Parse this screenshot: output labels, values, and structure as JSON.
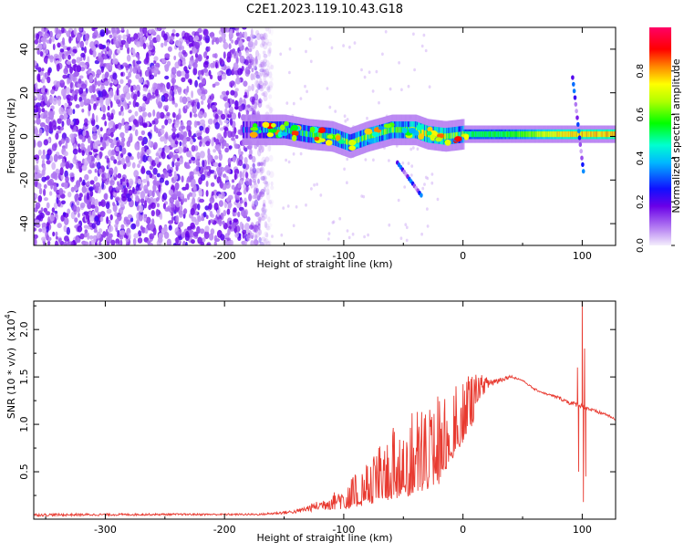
{
  "title": "C2E1.2023.119.10.43.G18",
  "chart_data": [
    {
      "type": "heatmap",
      "xlabel": "Height of straight line (km)",
      "ylabel": "Frequency (Hz)",
      "xlim": [
        -360,
        128
      ],
      "ylim": [
        -50,
        50
      ],
      "x_ticks": [
        -300,
        -200,
        -100,
        0,
        100
      ],
      "x_tick_labels": [
        "-300",
        "-200",
        "-100",
        "0",
        "100"
      ],
      "y_ticks": [
        -40,
        -20,
        0,
        20,
        40
      ],
      "y_tick_labels": [
        "-40",
        "-20",
        "0",
        "20",
        "40"
      ],
      "grid": false,
      "noise_region": {
        "x_range": [
          -360,
          -160
        ],
        "freq_range": [
          -50,
          50
        ],
        "level": 0.1
      },
      "signal_band": {
        "center_freq": [
          {
            "x": -180,
            "f": 3
          },
          {
            "x": -150,
            "f": 3
          },
          {
            "x": -130,
            "f": 1
          },
          {
            "x": -110,
            "f": 0
          },
          {
            "x": -95,
            "f": -3
          },
          {
            "x": -80,
            "f": 0
          },
          {
            "x": -60,
            "f": 3
          },
          {
            "x": -40,
            "f": 3
          },
          {
            "x": -30,
            "f": 1
          },
          {
            "x": -15,
            "f": 0
          },
          {
            "x": 0,
            "f": 1
          },
          {
            "x": 30,
            "f": 1
          },
          {
            "x": 60,
            "f": 1
          },
          {
            "x": 90,
            "f": 1
          },
          {
            "x": 128,
            "f": 1
          }
        ],
        "amplitude": [
          {
            "x": -180,
            "a": 0.3
          },
          {
            "x": -150,
            "a": 0.45
          },
          {
            "x": -100,
            "a": 0.55
          },
          {
            "x": -50,
            "a": 0.6
          },
          {
            "x": -20,
            "a": 0.7
          },
          {
            "x": 0,
            "a": 0.5
          },
          {
            "x": 40,
            "a": 0.55
          },
          {
            "x": 80,
            "a": 0.75
          },
          {
            "x": 128,
            "a": 0.8
          }
        ]
      },
      "streaks": [
        {
          "from": [
            -55,
            -12
          ],
          "to": [
            -35,
            -27
          ],
          "level": 0.25
        },
        {
          "from": [
            92,
            27
          ],
          "to": [
            101,
            -16
          ],
          "level": 0.25
        }
      ],
      "colorbar": {
        "label": "Normalized spectral amplitude",
        "range": [
          0,
          1
        ],
        "ticks": [
          0.0,
          0.2,
          0.4,
          0.6,
          0.8
        ],
        "tick_labels": [
          "0.0",
          "0.2",
          "0.4",
          "0.6",
          "0.8"
        ]
      }
    },
    {
      "type": "line",
      "xlabel": "Height of straight line (km)",
      "ylabel": "SNR (10 * v/v)",
      "y_multiplier": "(x10",
      "y_multiplier_exp": "4",
      "y_multiplier_close": ")",
      "xlim": [
        -360,
        128
      ],
      "ylim": [
        0,
        2.3
      ],
      "x_ticks": [
        -300,
        -200,
        -100,
        0,
        100
      ],
      "x_tick_labels": [
        "-300",
        "-200",
        "-100",
        "0",
        "100"
      ],
      "y_ticks": [
        0.5,
        1.0,
        1.5,
        2.0
      ],
      "y_tick_labels": [
        "0.5",
        "1.0",
        "1.5",
        "2.0"
      ],
      "grid": false,
      "color": "#e83a30",
      "envelope_base": [
        {
          "x": -360,
          "y": 0.03
        },
        {
          "x": -250,
          "y": 0.04
        },
        {
          "x": -170,
          "y": 0.04
        },
        {
          "x": -140,
          "y": 0.06
        },
        {
          "x": -120,
          "y": 0.09
        },
        {
          "x": -100,
          "y": 0.1
        },
        {
          "x": -80,
          "y": 0.15
        },
        {
          "x": -60,
          "y": 0.2
        },
        {
          "x": -40,
          "y": 0.25
        },
        {
          "x": -20,
          "y": 0.35
        },
        {
          "x": -10,
          "y": 0.6
        },
        {
          "x": 0,
          "y": 0.8
        },
        {
          "x": 10,
          "y": 1.05
        },
        {
          "x": 20,
          "y": 1.3
        },
        {
          "x": 30,
          "y": 1.4
        },
        {
          "x": 40,
          "y": 1.48
        },
        {
          "x": 50,
          "y": 1.45
        },
        {
          "x": 60,
          "y": 1.35
        },
        {
          "x": 70,
          "y": 1.3
        },
        {
          "x": 80,
          "y": 1.25
        },
        {
          "x": 90,
          "y": 1.18
        },
        {
          "x": 100,
          "y": 1.15
        },
        {
          "x": 110,
          "y": 1.1
        },
        {
          "x": 120,
          "y": 1.08
        },
        {
          "x": 128,
          "y": 1.02
        }
      ],
      "envelope_peak": [
        {
          "x": -360,
          "y": 0.06
        },
        {
          "x": -250,
          "y": 0.06
        },
        {
          "x": -170,
          "y": 0.06
        },
        {
          "x": -140,
          "y": 0.1
        },
        {
          "x": -120,
          "y": 0.2
        },
        {
          "x": -100,
          "y": 0.35
        },
        {
          "x": -80,
          "y": 0.6
        },
        {
          "x": -60,
          "y": 0.95
        },
        {
          "x": -40,
          "y": 1.15
        },
        {
          "x": -20,
          "y": 1.35
        },
        {
          "x": -10,
          "y": 1.45
        },
        {
          "x": 0,
          "y": 1.52
        },
        {
          "x": 10,
          "y": 1.55
        },
        {
          "x": 20,
          "y": 1.5
        },
        {
          "x": 30,
          "y": 1.5
        },
        {
          "x": 40,
          "y": 1.52
        },
        {
          "x": 50,
          "y": 1.47
        },
        {
          "x": 60,
          "y": 1.38
        },
        {
          "x": 70,
          "y": 1.33
        },
        {
          "x": 80,
          "y": 1.3
        },
        {
          "x": 90,
          "y": 1.25
        },
        {
          "x": 100,
          "y": 1.22
        },
        {
          "x": 110,
          "y": 1.16
        },
        {
          "x": 120,
          "y": 1.12
        },
        {
          "x": 128,
          "y": 1.06
        }
      ],
      "spikes": [
        {
          "x": 96,
          "y": 1.6
        },
        {
          "x": 97,
          "y": 0.5
        },
        {
          "x": 100,
          "y": 2.3
        },
        {
          "x": 101,
          "y": 0.18
        },
        {
          "x": 102,
          "y": 1.8
        },
        {
          "x": 103,
          "y": 0.45
        }
      ]
    }
  ]
}
